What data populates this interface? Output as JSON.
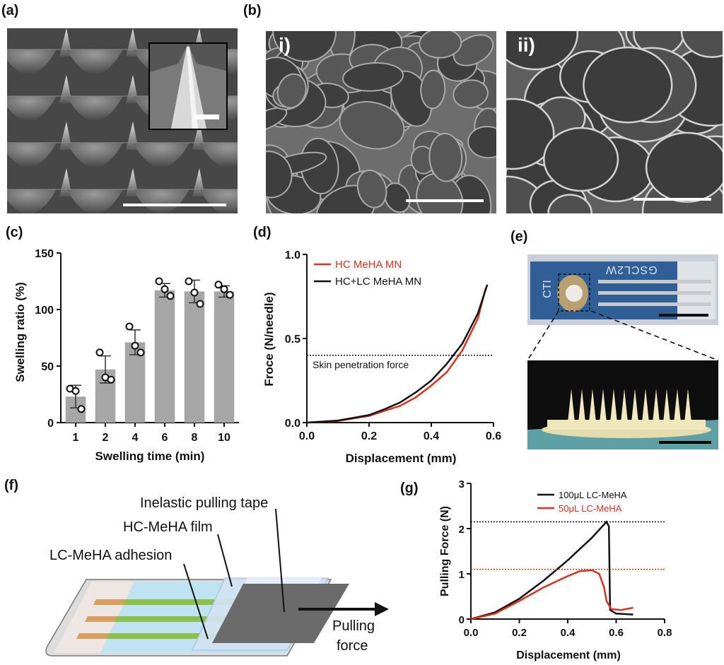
{
  "panels": {
    "a": {
      "label": "(a)"
    },
    "b": {
      "label": "(b)",
      "sub_i": "i)",
      "sub_ii": "ii)"
    },
    "c": {
      "label": "(c)"
    },
    "d": {
      "label": "(d)"
    },
    "e": {
      "label": "(e)",
      "device_text_1": "CTI",
      "device_text_2": "GSCL2W"
    },
    "f": {
      "label": "(f)",
      "tape_label": "Inelastic pulling tape",
      "film_label": "HC-MeHA film",
      "adhesion_label": "LC-MeHA adhesion",
      "force_label_1": "Pulling",
      "force_label_2": "force"
    },
    "g": {
      "label": "(g)"
    }
  },
  "colors": {
    "bar": "#a6a6a6",
    "red": "#d9321f",
    "black": "#111111",
    "sem_dark": "#3b3b3b",
    "device_blue": "#2f5f96"
  },
  "chart_data": [
    {
      "id": "c",
      "type": "bar",
      "xlabel": "Swelling time (min)",
      "ylabel": "Swelling ratio (%)",
      "categories": [
        "1",
        "2",
        "4",
        "6",
        "8",
        "10"
      ],
      "values": [
        23,
        47,
        71,
        117,
        116,
        116
      ],
      "errors": [
        10,
        12,
        11,
        6,
        10,
        5
      ],
      "points": [
        [
          30,
          28,
          12
        ],
        [
          62,
          40,
          38
        ],
        [
          85,
          68,
          62
        ],
        [
          125,
          118,
          112
        ],
        [
          125,
          115,
          105
        ],
        [
          122,
          118,
          113
        ]
      ],
      "ylim": [
        0,
        150
      ],
      "yticks": [
        "0",
        "50",
        "100",
        "150"
      ]
    },
    {
      "id": "d",
      "type": "line",
      "xlabel": "Displacement (mm)",
      "ylabel": "Froce (N/needle)",
      "xlim": [
        0,
        0.6
      ],
      "ylim": [
        0,
        1.0
      ],
      "xticks": [
        "0.0",
        "0.2",
        "0.4",
        "0.6"
      ],
      "yticks": [
        "0.0",
        "0.5",
        "1.0"
      ],
      "legend_position": "top-left",
      "threshold": {
        "y": 0.4,
        "label": "Skin penetration force"
      },
      "series": [
        {
          "name": "HC MeHA MN",
          "color": "#d9321f",
          "x": [
            0,
            0.1,
            0.2,
            0.25,
            0.3,
            0.35,
            0.4,
            0.45,
            0.5,
            0.55,
            0.575
          ],
          "y": [
            0,
            0.01,
            0.04,
            0.07,
            0.1,
            0.15,
            0.22,
            0.3,
            0.43,
            0.62,
            0.8
          ]
        },
        {
          "name": "HC+LC MeHA MN",
          "color": "#111111",
          "x": [
            0,
            0.1,
            0.2,
            0.25,
            0.3,
            0.35,
            0.4,
            0.45,
            0.5,
            0.55,
            0.58
          ],
          "y": [
            0,
            0.012,
            0.045,
            0.08,
            0.12,
            0.18,
            0.25,
            0.35,
            0.47,
            0.65,
            0.82
          ]
        }
      ]
    },
    {
      "id": "g",
      "type": "line",
      "xlabel": "Displacement (mm)",
      "ylabel": "Pulling Force (N)",
      "xlim": [
        0,
        0.8
      ],
      "ylim": [
        0,
        3
      ],
      "xticks": [
        "0.0",
        "0.2",
        "0.4",
        "0.6",
        "0.8"
      ],
      "yticks": [
        "0",
        "1",
        "2",
        "3"
      ],
      "legend_position": "top-right",
      "series": [
        {
          "name": "100μL LC-MeHA",
          "color": "#111111",
          "threshold": 2.15,
          "x": [
            0,
            0.1,
            0.2,
            0.3,
            0.4,
            0.5,
            0.56,
            0.57,
            0.575,
            0.6,
            0.67
          ],
          "y": [
            0,
            0.15,
            0.45,
            0.85,
            1.3,
            1.8,
            2.15,
            2.05,
            0.2,
            0.12,
            0.1
          ]
        },
        {
          "name": "50μL LC-MeHA",
          "color": "#d9321f",
          "threshold": 1.1,
          "x": [
            0,
            0.1,
            0.2,
            0.3,
            0.4,
            0.45,
            0.5,
            0.53,
            0.55,
            0.56,
            0.58,
            0.62,
            0.67
          ],
          "y": [
            0,
            0.12,
            0.4,
            0.7,
            0.95,
            1.06,
            1.08,
            1.0,
            0.7,
            0.4,
            0.22,
            0.2,
            0.25
          ]
        }
      ]
    }
  ]
}
